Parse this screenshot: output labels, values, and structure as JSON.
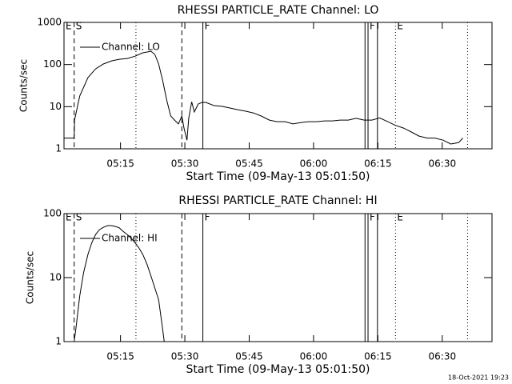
{
  "footer": "18-Oct-2021 19:23",
  "chart_data": [
    {
      "type": "line",
      "title": "RHESSI PARTICLE_RATE Channel: LO",
      "xlabel": "Start Time (09-May-13 05:01:50)",
      "ylabel": "Counts/sec",
      "log_y": true,
      "legend": "upper left",
      "xlim": [
        301.83,
        401.6
      ],
      "ylim": [
        1,
        1000
      ],
      "xticks": [
        {
          "value": 315,
          "label": "05:15"
        },
        {
          "value": 330,
          "label": "05:30"
        },
        {
          "value": 345,
          "label": "05:45"
        },
        {
          "value": 360,
          "label": "06:00"
        },
        {
          "value": 375,
          "label": "06:15"
        },
        {
          "value": 390,
          "label": "06:30"
        }
      ],
      "yticks": [
        1,
        10,
        100,
        1000
      ],
      "annotations": [
        {
          "x": 301.83,
          "style": "solid",
          "label": "E"
        },
        {
          "x": 304.2,
          "style": "dashed",
          "label": "S"
        },
        {
          "x": 318.6,
          "style": "dotted"
        },
        {
          "x": 329.3,
          "style": "dashed"
        },
        {
          "x": 334.2,
          "style": "solid",
          "label": "F"
        },
        {
          "x": 372.0,
          "style": "solid"
        },
        {
          "x": 372.7,
          "style": "solid",
          "label": "F"
        },
        {
          "x": 374.9,
          "style": "solid"
        },
        {
          "x": 379.1,
          "style": "dotted",
          "label": "E"
        },
        {
          "x": 395.9,
          "style": "dotted"
        }
      ],
      "series": [
        {
          "name": "Channel: LO",
          "color": "#000000",
          "x": [
            301.8,
            304.2,
            304.3,
            305.5,
            307.4,
            309.2,
            311.0,
            312.9,
            314.7,
            316.6,
            318.4,
            320.2,
            322.1,
            323.0,
            323.9,
            324.8,
            325.8,
            326.7,
            327.6,
            328.5,
            329.3,
            329.8,
            330.5,
            330.9,
            331.6,
            332.2,
            333.1,
            334.0,
            334.9,
            336.8,
            338.6,
            340.5,
            342.3,
            344.2,
            346.0,
            347.8,
            349.7,
            351.5,
            353.4,
            355.2,
            357.0,
            358.9,
            360.7,
            362.6,
            364.4,
            366.2,
            368.1,
            369.9,
            371.8,
            373.6,
            375.4,
            377.3,
            379.1,
            381.0,
            382.8,
            384.6,
            386.5,
            388.3,
            390.2,
            392.0,
            393.8,
            394.8
          ],
          "values": [
            1.8,
            1.8,
            4.8,
            18,
            49,
            79,
            103,
            122,
            133,
            139,
            158,
            190,
            206,
            174,
            103,
            43,
            14,
            6,
            4.8,
            3.9,
            6,
            3.1,
            1.6,
            5.3,
            13,
            7.5,
            11.5,
            12.6,
            12.6,
            10.6,
            10.2,
            9.3,
            8.5,
            7.8,
            7.1,
            6,
            4.8,
            4.4,
            4.4,
            3.9,
            4.2,
            4.4,
            4.4,
            4.6,
            4.6,
            4.8,
            4.8,
            5.3,
            4.8,
            4.8,
            5.4,
            4.4,
            3.6,
            3.1,
            2.5,
            2,
            1.8,
            1.8,
            1.6,
            1.3,
            1.4,
            1.8
          ]
        }
      ]
    },
    {
      "type": "line",
      "title": "RHESSI PARTICLE_RATE Channel: HI",
      "xlabel": "Start Time (09-May-13 05:01:50)",
      "ylabel": "Counts/sec",
      "log_y": true,
      "legend": "upper left",
      "xlim": [
        301.83,
        401.6
      ],
      "ylim": [
        1,
        100
      ],
      "xticks": [
        {
          "value": 315,
          "label": "05:15"
        },
        {
          "value": 330,
          "label": "05:30"
        },
        {
          "value": 345,
          "label": "05:45"
        },
        {
          "value": 360,
          "label": "06:00"
        },
        {
          "value": 375,
          "label": "06:15"
        },
        {
          "value": 390,
          "label": "06:30"
        }
      ],
      "yticks": [
        1,
        10,
        100
      ],
      "annotations": [
        {
          "x": 301.83,
          "style": "solid",
          "label": "E"
        },
        {
          "x": 304.2,
          "style": "dashed",
          "label": "S"
        },
        {
          "x": 318.6,
          "style": "dotted"
        },
        {
          "x": 329.3,
          "style": "dashed"
        },
        {
          "x": 334.2,
          "style": "solid",
          "label": "F"
        },
        {
          "x": 372.0,
          "style": "solid"
        },
        {
          "x": 372.7,
          "style": "solid",
          "label": "F"
        },
        {
          "x": 374.9,
          "style": "solid"
        },
        {
          "x": 379.1,
          "style": "dotted",
          "label": "E"
        },
        {
          "x": 395.9,
          "style": "dotted"
        }
      ],
      "series": [
        {
          "name": "Channel: HI",
          "color": "#000000",
          "x": [
            304.2,
            304.6,
            305.5,
            306.4,
            307.4,
            308.3,
            309.2,
            310.1,
            311.0,
            312.0,
            312.9,
            313.8,
            314.7,
            315.6,
            316.6,
            317.5,
            318.4,
            319.3,
            320.2,
            321.2,
            322.1,
            323.0,
            323.9,
            324.8,
            325.2
          ],
          "values": [
            1,
            1.6,
            5.2,
            12,
            23,
            35,
            47,
            56,
            61,
            65,
            65,
            63,
            60,
            53,
            47,
            41,
            35,
            29,
            23,
            16,
            10.6,
            6.9,
            4.5,
            1.6,
            1
          ]
        }
      ]
    }
  ]
}
